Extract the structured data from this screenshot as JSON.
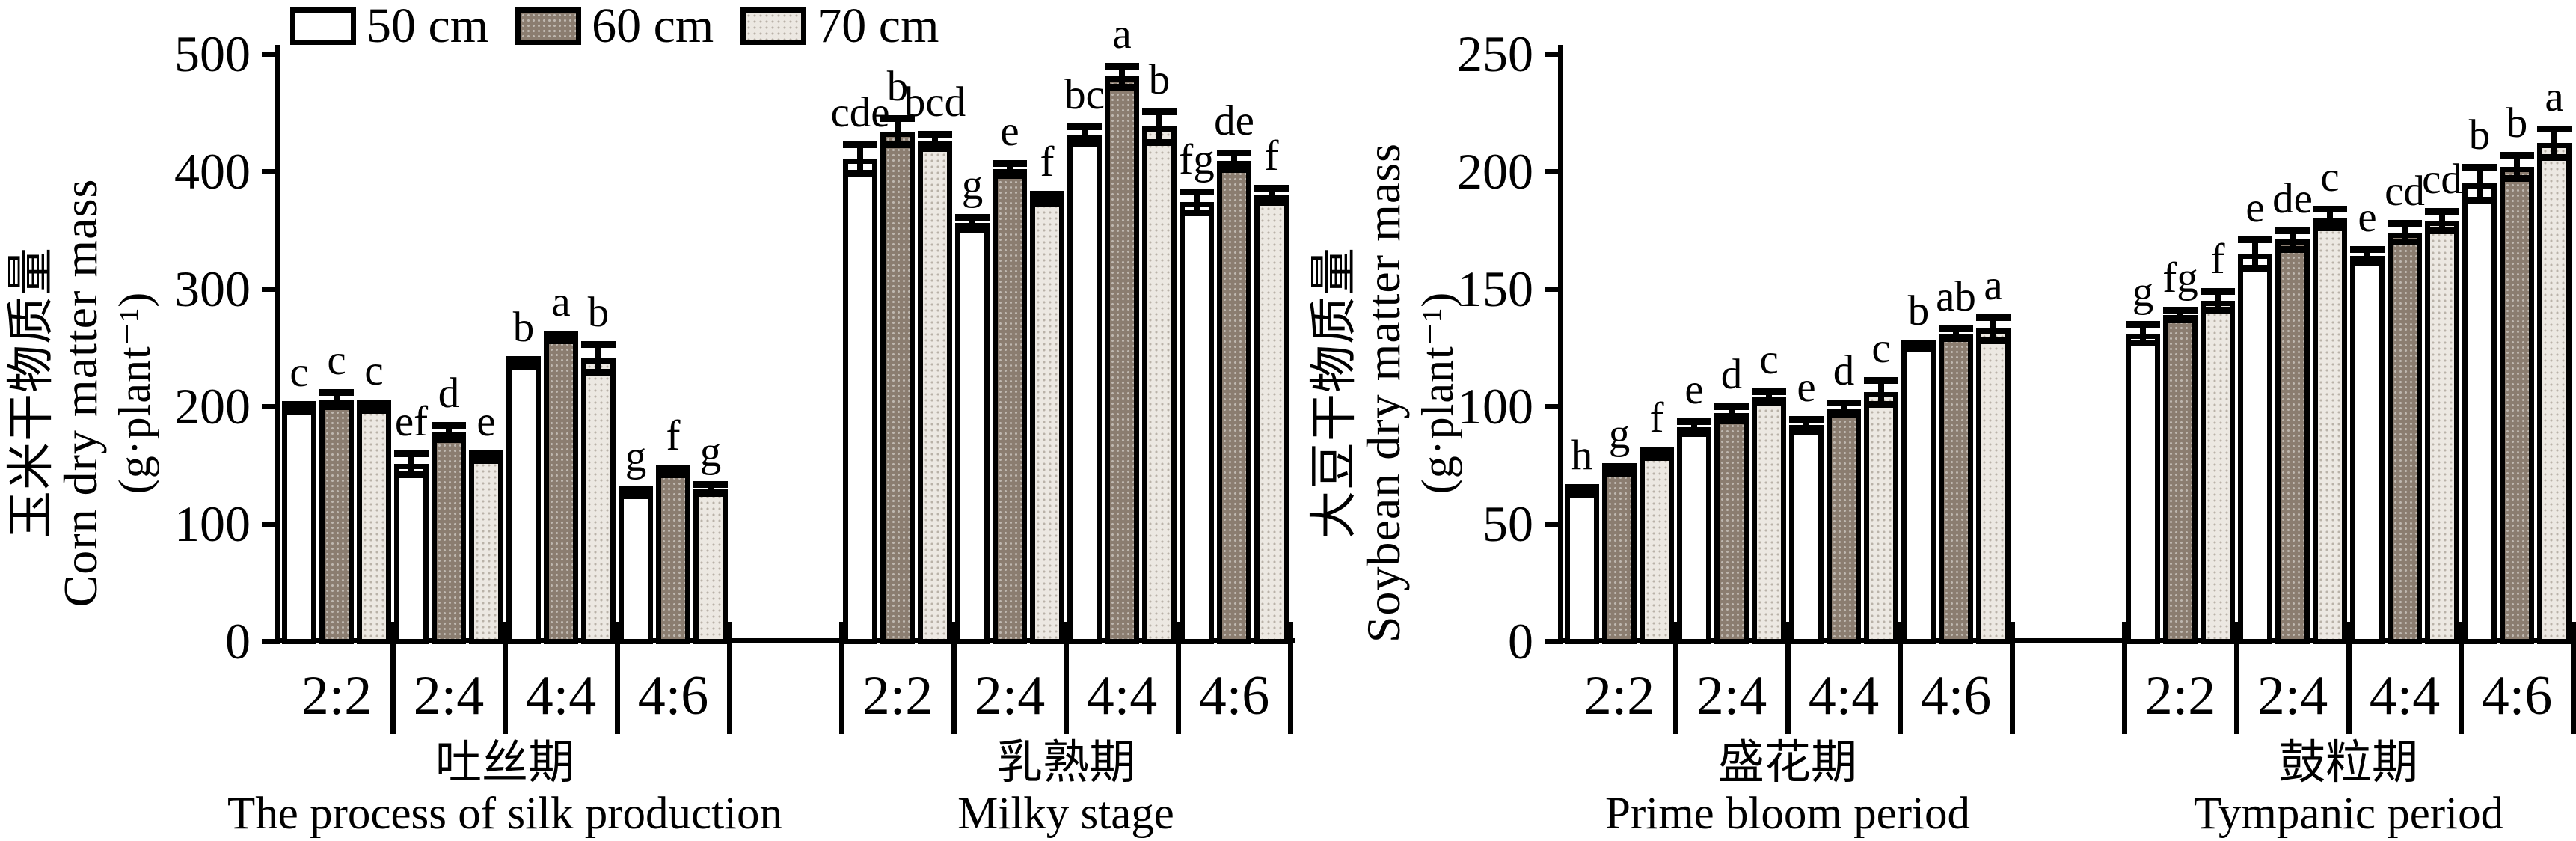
{
  "legend": {
    "items": [
      {
        "label": "50 cm",
        "swatch": "white"
      },
      {
        "label": "60 cm",
        "swatch": "brown-dotted"
      },
      {
        "label": "70 cm",
        "swatch": "light-dotted"
      }
    ]
  },
  "colors": {
    "foreground": "#000000",
    "background": "#ffffff",
    "bar_50cm": "#ffffff",
    "bar_60cm": "#8b7d70",
    "bar_60cm_dot": "rgba(255,255,255,0.45)",
    "bar_70cm": "#ece8e2",
    "bar_70cm_dot": "#b9b2a8"
  },
  "chart_data": [
    {
      "type": "bar",
      "panel": "corn",
      "ylabel_zh": "玉米干物质量",
      "ylabel_en": "Corn dry matter mass",
      "ylabel_unit": "(g·plant⁻¹)",
      "ylim": [
        0,
        500
      ],
      "yticks": [
        0,
        100,
        200,
        300,
        400,
        500
      ],
      "grid": false,
      "legend_position": "top-left",
      "legend_entries": [
        "50 cm",
        "60 cm",
        "70 cm"
      ],
      "stages": [
        {
          "stage_zh": "吐丝期",
          "stage_en": "The process of silk production",
          "categories": [
            "2:2",
            "2:4",
            "4:4",
            "4:6"
          ],
          "series": [
            {
              "name": "50 cm",
              "values": [
                199,
                151,
                237,
                127
              ],
              "errors": [
                3,
                9,
                3,
                3
              ],
              "letters": [
                "c",
                "ef",
                "b",
                "g"
              ]
            },
            {
              "name": "60 cm",
              "values": [
                206,
                178,
                259,
                145
              ],
              "errors": [
                6,
                6,
                3,
                3
              ],
              "letters": [
                "c",
                "d",
                "a",
                "f"
              ]
            },
            {
              "name": "70 cm",
              "values": [
                200,
                157,
                241,
                130
              ],
              "errors": [
                3,
                3,
                12,
                4
              ],
              "letters": [
                "c",
                "e",
                "b",
                "g"
              ]
            }
          ]
        },
        {
          "stage_zh": "乳熟期",
          "stage_en": "Milky stage",
          "categories": [
            "2:2",
            "2:4",
            "4:4",
            "4:6"
          ],
          "series": [
            {
              "name": "50 cm",
              "values": [
                411,
                356,
                431,
                374
              ],
              "errors": [
                12,
                5,
                7,
                9
              ],
              "letters": [
                "cde",
                "g",
                "bc",
                "fg"
              ]
            },
            {
              "name": "60 cm",
              "values": [
                434,
                402,
                481,
                409
              ],
              "errors": [
                11,
                5,
                9,
                7
              ],
              "letters": [
                "b",
                "e",
                "a",
                "de"
              ]
            },
            {
              "name": "70 cm",
              "values": [
                426,
                377,
                438,
                380
              ],
              "errors": [
                6,
                4,
                13,
                6
              ],
              "letters": [
                "bcd",
                "f",
                "b",
                "f"
              ]
            }
          ]
        }
      ]
    },
    {
      "type": "bar",
      "panel": "soybean",
      "ylabel_zh": "大豆干物质量",
      "ylabel_en": "Soybean dry matter mass",
      "ylabel_unit": "(g·plant⁻¹)",
      "ylim": [
        0,
        250
      ],
      "yticks": [
        0,
        50,
        100,
        150,
        200,
        250
      ],
      "grid": false,
      "legend_position": "none",
      "legend_entries": [
        "50 cm",
        "60 cm",
        "70 cm"
      ],
      "stages": [
        {
          "stage_zh": "盛花期",
          "stage_en": "Prime bloom period",
          "categories": [
            "2:2",
            "2:4",
            "4:4",
            "4:6"
          ],
          "series": [
            {
              "name": "50 cm",
              "values": [
                64,
                91,
                92,
                126
              ],
              "errors": [
                1.5,
                2.5,
                2.5,
                1
              ],
              "letters": [
                "h",
                "e",
                "e",
                "b"
              ]
            },
            {
              "name": "60 cm",
              "values": [
                73,
                97,
                99,
                131
              ],
              "errors": [
                1.5,
                3,
                2.5,
                2
              ],
              "letters": [
                "g",
                "d",
                "d",
                "ab"
              ]
            },
            {
              "name": "70 cm",
              "values": [
                80,
                104,
                106,
                133
              ],
              "errors": [
                1.5,
                2.5,
                5,
                5
              ],
              "letters": [
                "f",
                "c",
                "c",
                "a"
              ]
            }
          ]
        },
        {
          "stage_zh": "鼓粒期",
          "stage_en": "Tympanic period",
          "categories": [
            "2:2",
            "2:4",
            "4:4",
            "4:6"
          ],
          "series": [
            {
              "name": "50 cm",
              "values": [
                131,
                165,
                164,
                195
              ],
              "errors": [
                4,
                6,
                3,
                7
              ],
              "letters": [
                "g",
                "e",
                "e",
                "b"
              ]
            },
            {
              "name": "60 cm",
              "values": [
                139,
                171,
                174,
                202
              ],
              "errors": [
                2,
                4,
                4,
                5
              ],
              "letters": [
                "fg",
                "de",
                "cd",
                "b"
              ]
            },
            {
              "name": "70 cm",
              "values": [
                145,
                180,
                179,
                212
              ],
              "errors": [
                4,
                4,
                4,
                6
              ],
              "letters": [
                "f",
                "c",
                "cd",
                "a"
              ]
            }
          ]
        }
      ]
    }
  ]
}
